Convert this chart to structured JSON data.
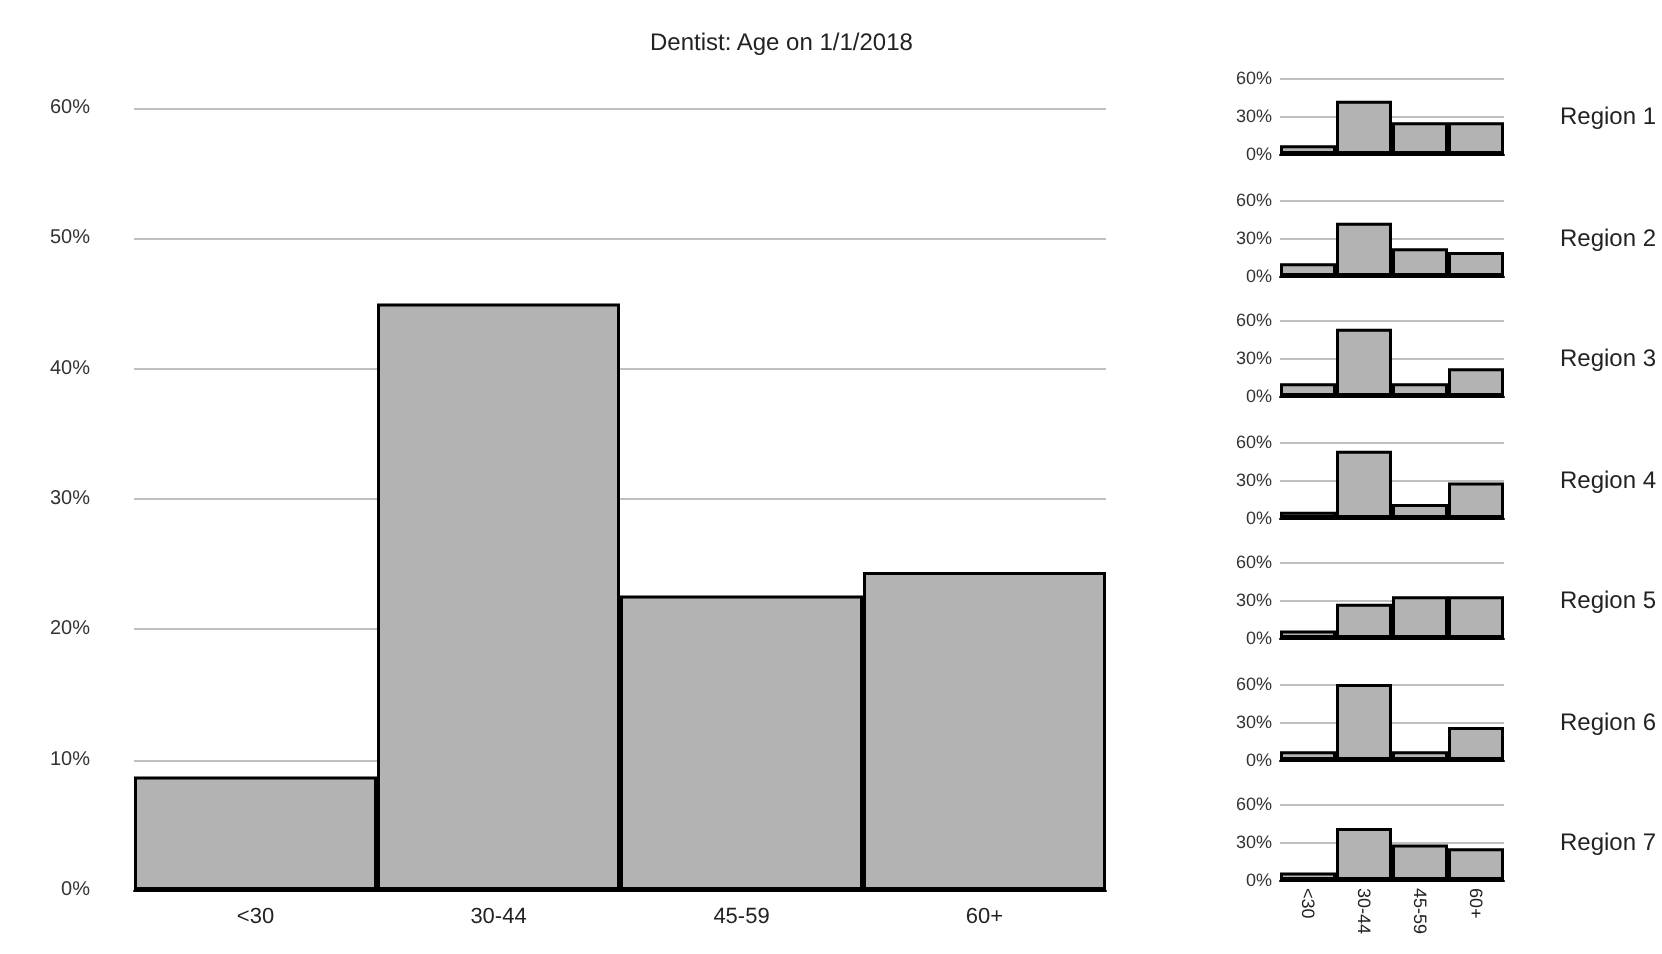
{
  "chart_data": [
    {
      "type": "bar",
      "title": "Dentist: Age on 1/1/2018",
      "categories": [
        "<30",
        "30-44",
        "45-59",
        "60+"
      ],
      "values": [
        8.7,
        45,
        22.6,
        24.4
      ],
      "color": "#b3b3b3",
      "ylim": [
        0,
        60
      ],
      "yticks": [
        {
          "value": 0,
          "label": "0%"
        },
        {
          "value": 10,
          "label": "10%"
        },
        {
          "value": 20,
          "label": "20%"
        },
        {
          "value": 30,
          "label": "30%"
        },
        {
          "value": 40,
          "label": "40%"
        },
        {
          "value": 50,
          "label": "50%"
        },
        {
          "value": 60,
          "label": "60%"
        }
      ],
      "grid": "y"
    },
    {
      "type": "bar",
      "y2label": "Region 1",
      "categories": [
        null,
        null,
        null,
        null
      ],
      "values": [
        7,
        42,
        25,
        25
      ],
      "color": "#b3b3b3",
      "ylim": [
        0,
        60
      ],
      "yticks": [
        {
          "value": 0,
          "label": "0%"
        },
        {
          "value": 30,
          "label": "30%"
        },
        {
          "value": 60,
          "label": "60%"
        }
      ],
      "grid": "y",
      "tick_labels": "y"
    },
    {
      "type": "bar",
      "y2label": "Region 2",
      "categories": [
        null,
        null,
        null,
        null
      ],
      "values": [
        10,
        42,
        22,
        19
      ],
      "color": "#b3b3b3",
      "ylim": [
        0,
        60
      ],
      "yticks": [
        {
          "value": 0,
          "label": "0%"
        },
        {
          "value": 30,
          "label": "30%"
        },
        {
          "value": 60,
          "label": "60%"
        }
      ],
      "grid": "y",
      "tick_labels": "y"
    },
    {
      "type": "bar",
      "y2label": "Region 3",
      "categories": [
        null,
        null,
        null,
        null
      ],
      "values": [
        10,
        53,
        10,
        22
      ],
      "color": "#b3b3b3",
      "ylim": [
        0,
        60
      ],
      "yticks": [
        {
          "value": 0,
          "label": "0%"
        },
        {
          "value": 30,
          "label": "30%"
        },
        {
          "value": 60,
          "label": "60%"
        }
      ],
      "grid": "y",
      "tick_labels": "y"
    },
    {
      "type": "bar",
      "y2label": "Region 4",
      "categories": [
        null,
        null,
        null,
        null
      ],
      "values": [
        5,
        53,
        11,
        28
      ],
      "color": "#b3b3b3",
      "ylim": [
        0,
        60
      ],
      "yticks": [
        {
          "value": 0,
          "label": "0%"
        },
        {
          "value": 30,
          "label": "30%"
        },
        {
          "value": 60,
          "label": "60%"
        }
      ],
      "grid": "y",
      "tick_labels": "y"
    },
    {
      "type": "bar",
      "y2label": "Region 5",
      "categories": [
        null,
        null,
        null,
        null
      ],
      "values": [
        6,
        27,
        33,
        33
      ],
      "color": "#b3b3b3",
      "ylim": [
        0,
        60
      ],
      "yticks": [
        {
          "value": 0,
          "label": "0%"
        },
        {
          "value": 30,
          "label": "30%"
        },
        {
          "value": 60,
          "label": "60%"
        }
      ],
      "grid": "y",
      "tick_labels": "y"
    },
    {
      "type": "bar",
      "y2label": "Region 6",
      "categories": [
        null,
        null,
        null,
        null
      ],
      "values": [
        7,
        60,
        7,
        26
      ],
      "color": "#b3b3b3",
      "ylim": [
        0,
        60
      ],
      "yticks": [
        {
          "value": 0,
          "label": "0%"
        },
        {
          "value": 30,
          "label": "30%"
        },
        {
          "value": 60,
          "label": "60%"
        }
      ],
      "grid": "y",
      "tick_labels": "y"
    },
    {
      "type": "bar",
      "y2label": "Region 7",
      "categories": [
        "<30",
        "30-44",
        "45-59",
        "60+"
      ],
      "values": [
        6,
        41,
        28,
        25
      ],
      "color": "#b3b3b3",
      "ylim": [
        0,
        60
      ],
      "yticks": [
        {
          "value": 0,
          "label": "0%"
        },
        {
          "value": 30,
          "label": "30%"
        },
        {
          "value": 60,
          "label": "60%"
        }
      ],
      "grid": "y"
    }
  ]
}
